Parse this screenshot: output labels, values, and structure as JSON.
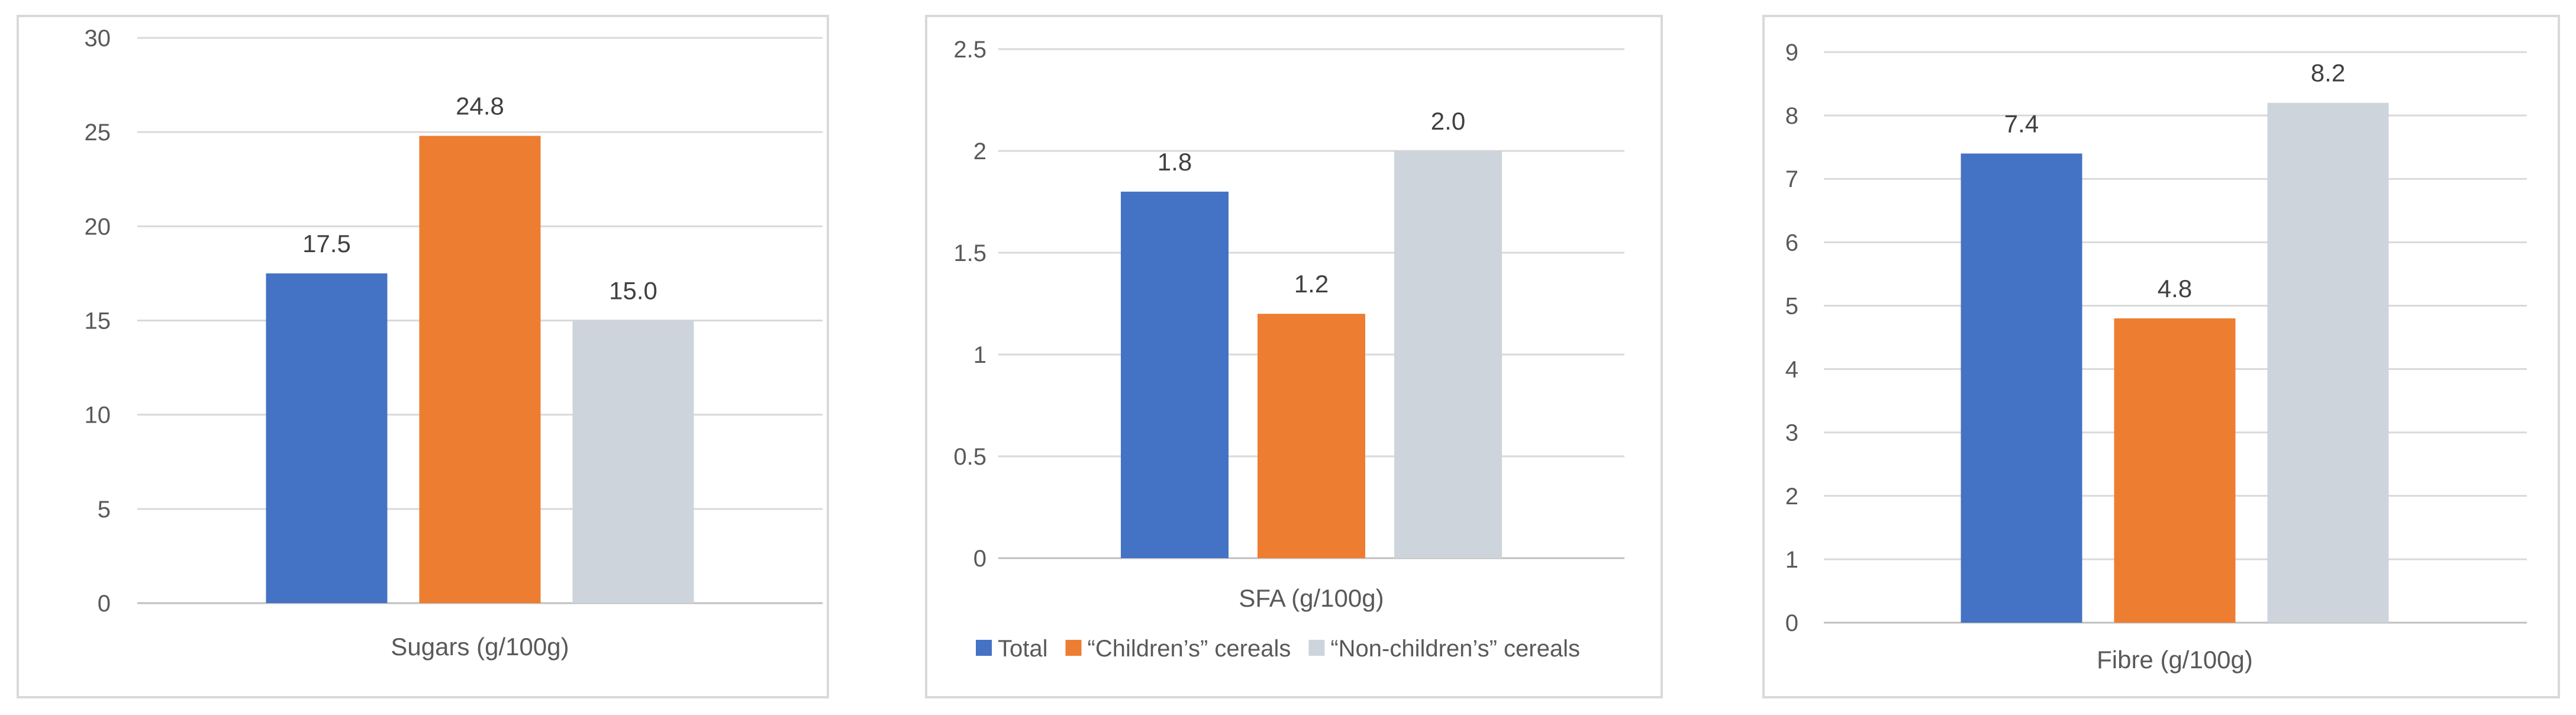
{
  "colors": {
    "total": "#4472c4",
    "childrens": "#ed7d31",
    "non_childrens": "#cdd4dc",
    "grid": "#d9d9d9",
    "axis": "#bfbfbf"
  },
  "legend": [
    {
      "name": "Total",
      "color": "#4472c4"
    },
    {
      "name": "“Children’s” cereals",
      "color": "#ed7d31"
    },
    {
      "name": "“Non-children’s” cereals",
      "color": "#cdd4dc"
    }
  ],
  "chart_data": [
    {
      "type": "bar",
      "title": "",
      "categories": [
        "Sugars (g/100g)"
      ],
      "series": [
        {
          "name": "Total",
          "values": [
            17.5
          ],
          "label": "17.5"
        },
        {
          "name": "“Children’s” cereals",
          "values": [
            24.8
          ],
          "label": "24.8"
        },
        {
          "name": "“Non-children’s” cereals",
          "values": [
            15.0
          ],
          "label": "15.0"
        }
      ],
      "xlabel": "Sugars (g/100g)",
      "ylabel": "",
      "ylim": [
        0,
        30
      ],
      "yticks": [
        "0",
        "5",
        "10",
        "15",
        "20",
        "25",
        "30"
      ],
      "grid": true,
      "legend": "none"
    },
    {
      "type": "bar",
      "title": "",
      "categories": [
        "SFA (g/100g)"
      ],
      "series": [
        {
          "name": "Total",
          "values": [
            1.8
          ],
          "label": "1.8"
        },
        {
          "name": "“Children’s” cereals",
          "values": [
            1.2
          ],
          "label": "1.2"
        },
        {
          "name": "“Non-children’s” cereals",
          "values": [
            2.0
          ],
          "label": "2.0"
        }
      ],
      "xlabel": "SFA (g/100g)",
      "ylabel": "",
      "ylim": [
        0,
        2.5
      ],
      "yticks": [
        "0",
        "0.5",
        "1",
        "1.5",
        "2",
        "2.5"
      ],
      "grid": true,
      "legend": "bottom"
    },
    {
      "type": "bar",
      "title": "",
      "categories": [
        "Fibre (g/100g)"
      ],
      "series": [
        {
          "name": "Total",
          "values": [
            7.4
          ],
          "label": "7.4"
        },
        {
          "name": "“Children’s” cereals",
          "values": [
            4.8
          ],
          "label": "4.8"
        },
        {
          "name": "“Non-children’s” cereals",
          "values": [
            8.2
          ],
          "label": "8.2"
        }
      ],
      "xlabel": "Fibre (g/100g)",
      "ylabel": "",
      "ylim": [
        0,
        9
      ],
      "yticks": [
        "0",
        "1",
        "2",
        "3",
        "4",
        "5",
        "6",
        "7",
        "8",
        "9"
      ],
      "grid": true,
      "legend": "none"
    }
  ]
}
